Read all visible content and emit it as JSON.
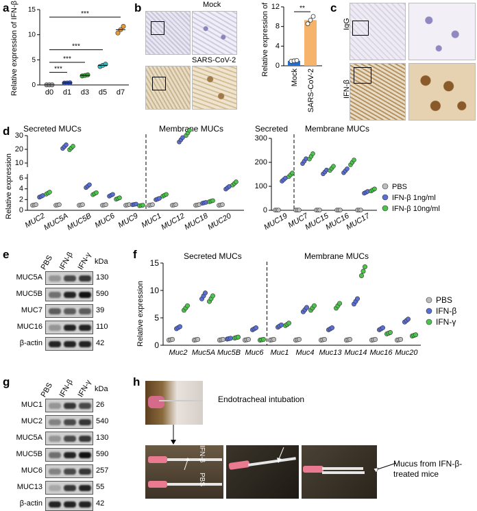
{
  "panels": {
    "a": {
      "label": "a",
      "ylabel": "Relative expression of IFN-β (folds x10³)",
      "yticks": [
        "0",
        "5",
        "10",
        "15"
      ],
      "xticks": [
        "d0",
        "d1",
        "d3",
        "d5",
        "d7"
      ],
      "values": [
        0.02,
        0.4,
        1.9,
        3.9,
        11.0
      ],
      "sig": [
        "***",
        "***",
        "***"
      ],
      "colors": [
        "#9e9e9e",
        "#3355cc",
        "#33aa33",
        "#33bbbb",
        "#e09a3a"
      ]
    },
    "b": {
      "label": "b",
      "mock": "Mock",
      "sars": "SARS-CoV-2",
      "ylabel": "Relative expression of IFN-β (fold)",
      "yticks": [
        "0",
        "4",
        "8",
        "12"
      ],
      "bars": [
        {
          "name": "Mock",
          "value": 1.0,
          "color": "#1e6fd6"
        },
        {
          "name": "SARS-CoV-2",
          "value": 9.3,
          "color": "#f5b36b"
        }
      ],
      "sig": "**"
    },
    "c": {
      "label": "c",
      "rows": [
        "IgG",
        "IFN-β"
      ]
    },
    "d": {
      "label": "d",
      "group1": "Secreted MUCs",
      "group2": "Membrane MUCs",
      "group3": "Secreted",
      "group4": "Membrane MUCs",
      "ylabel": "Relative expression",
      "yticks_low": [
        "0",
        "2",
        "4",
        "6"
      ],
      "yticks_high": [
        "10",
        "20",
        "30"
      ],
      "yticks_right": [
        "0",
        "100",
        "200",
        "300"
      ],
      "genes_left": [
        "MUC2",
        "MUC5A",
        "MUC5B",
        "MUC6",
        "MUC9",
        "MUC1",
        "MUC12",
        "MUC18",
        "MUC20"
      ],
      "genes_right": [
        "MUC19",
        "MUC7",
        "MUC15",
        "MUC16",
        "MUC17"
      ],
      "legend": [
        "PBS",
        "IFN-β 1ng/ml",
        "IFN-β 10ng/ml"
      ]
    },
    "e": {
      "label": "e",
      "cols": [
        "PBS",
        "IFN-β",
        "IFN-γ"
      ],
      "kda": "kDa",
      "rows": [
        {
          "name": "MUC5A",
          "kda": "130"
        },
        {
          "name": "MUC5B",
          "kda": "590"
        },
        {
          "name": "MUC7",
          "kda": "39"
        },
        {
          "name": "MUC16",
          "kda": "110"
        },
        {
          "name": "β-actin",
          "kda": "42"
        }
      ]
    },
    "f": {
      "label": "f",
      "group1": "Secreted MUCs",
      "group2": "Membrane MUCs",
      "ylabel": "Relative expression",
      "yticks": [
        "0",
        "5",
        "10",
        "15"
      ],
      "genes": [
        "Muc2",
        "Muc5A",
        "Muc5B",
        "Muc6",
        "Muc1",
        "Muc4",
        "Muc13",
        "Muc14",
        "Muc16",
        "Muc20"
      ],
      "legend": [
        "PBS",
        "IFN-β",
        "IFN-γ"
      ]
    },
    "g": {
      "label": "g",
      "cols": [
        "PBS",
        "IFN-β",
        "IFN-γ"
      ],
      "kda": "kDa",
      "rows": [
        {
          "name": "MUC1",
          "kda": "26"
        },
        {
          "name": "MUC2",
          "kda": "540"
        },
        {
          "name": "MUC5A",
          "kda": "130"
        },
        {
          "name": "MUC5B",
          "kda": "590"
        },
        {
          "name": "MUC6",
          "kda": "257"
        },
        {
          "name": "MUC13",
          "kda": "55"
        },
        {
          "name": "β-actin",
          "kda": "42"
        }
      ]
    },
    "h": {
      "label": "h",
      "intubation": "Endotracheal intubation",
      "ifnb": "IFN-β",
      "pbs": "PBS",
      "mucus": "Mucus from IFN-β-treated mice"
    }
  },
  "chart_data": [
    {
      "type": "scatter",
      "panel": "a",
      "categories": [
        "d0",
        "d1",
        "d3",
        "d5",
        "d7"
      ],
      "values": [
        0.02,
        0.4,
        1.9,
        3.9,
        11.0
      ],
      "ylabel": "Relative expression of IFN-β (folds x10³)",
      "ylim": [
        0,
        15
      ]
    },
    {
      "type": "bar",
      "panel": "b",
      "categories": [
        "Mock",
        "SARS-CoV-2"
      ],
      "values": [
        1.0,
        9.3
      ],
      "ylabel": "Relative expression of IFN-β (fold)",
      "ylim": [
        0,
        12
      ]
    },
    {
      "type": "scatter",
      "panel": "d",
      "categories": [
        "MUC2",
        "MUC5A",
        "MUC5B",
        "MUC6",
        "MUC9",
        "MUC1",
        "MUC12",
        "MUC18",
        "MUC20"
      ],
      "series": [
        {
          "name": "PBS",
          "values": [
            1,
            1,
            1,
            1,
            1,
            1,
            1,
            1,
            1
          ]
        },
        {
          "name": "IFN-β 1ng/ml",
          "values": [
            2.6,
            22,
            4.5,
            2.8,
            1.1,
            2.1,
            27,
            1.4,
            4.2
          ]
        },
        {
          "name": "IFN-β 10ng/ml",
          "values": [
            3.2,
            21,
            3.1,
            2.2,
            0.9,
            2.8,
            32,
            1.7,
            5.0
          ]
        }
      ],
      "ylabel": "Relative expression"
    },
    {
      "type": "scatter",
      "panel": "d-right",
      "categories": [
        "MUC19",
        "MUC7",
        "MUC15",
        "MUC16",
        "MUC17"
      ],
      "series": [
        {
          "name": "PBS",
          "values": [
            1,
            1,
            1,
            1,
            1
          ]
        },
        {
          "name": "IFN-β 1ng/ml",
          "values": [
            128,
            205,
            160,
            165,
            75
          ]
        },
        {
          "name": "IFN-β 10ng/ml",
          "values": [
            148,
            225,
            175,
            200,
            85
          ]
        }
      ],
      "ylim": [
        0,
        300
      ]
    },
    {
      "type": "scatter",
      "panel": "f",
      "categories": [
        "Muc2",
        "Muc5A",
        "Muc5B",
        "Muc6",
        "Muc1",
        "Muc4",
        "Muc13",
        "Muc14",
        "Muc16",
        "Muc20"
      ],
      "series": [
        {
          "name": "PBS",
          "values": [
            1,
            1,
            1,
            1,
            1,
            1,
            1,
            1,
            1,
            1
          ]
        },
        {
          "name": "IFN-β",
          "values": [
            3.2,
            9.0,
            1.2,
            3.0,
            3.5,
            6.5,
            3.0,
            8.0,
            3.0,
            4.5
          ]
        },
        {
          "name": "IFN-γ",
          "values": [
            6.8,
            8.5,
            1.4,
            1.0,
            3.8,
            6.8,
            7.2,
            13.5,
            2.2,
            1.8
          ]
        }
      ],
      "ylabel": "Relative expression",
      "ylim": [
        0,
        15
      ]
    }
  ]
}
